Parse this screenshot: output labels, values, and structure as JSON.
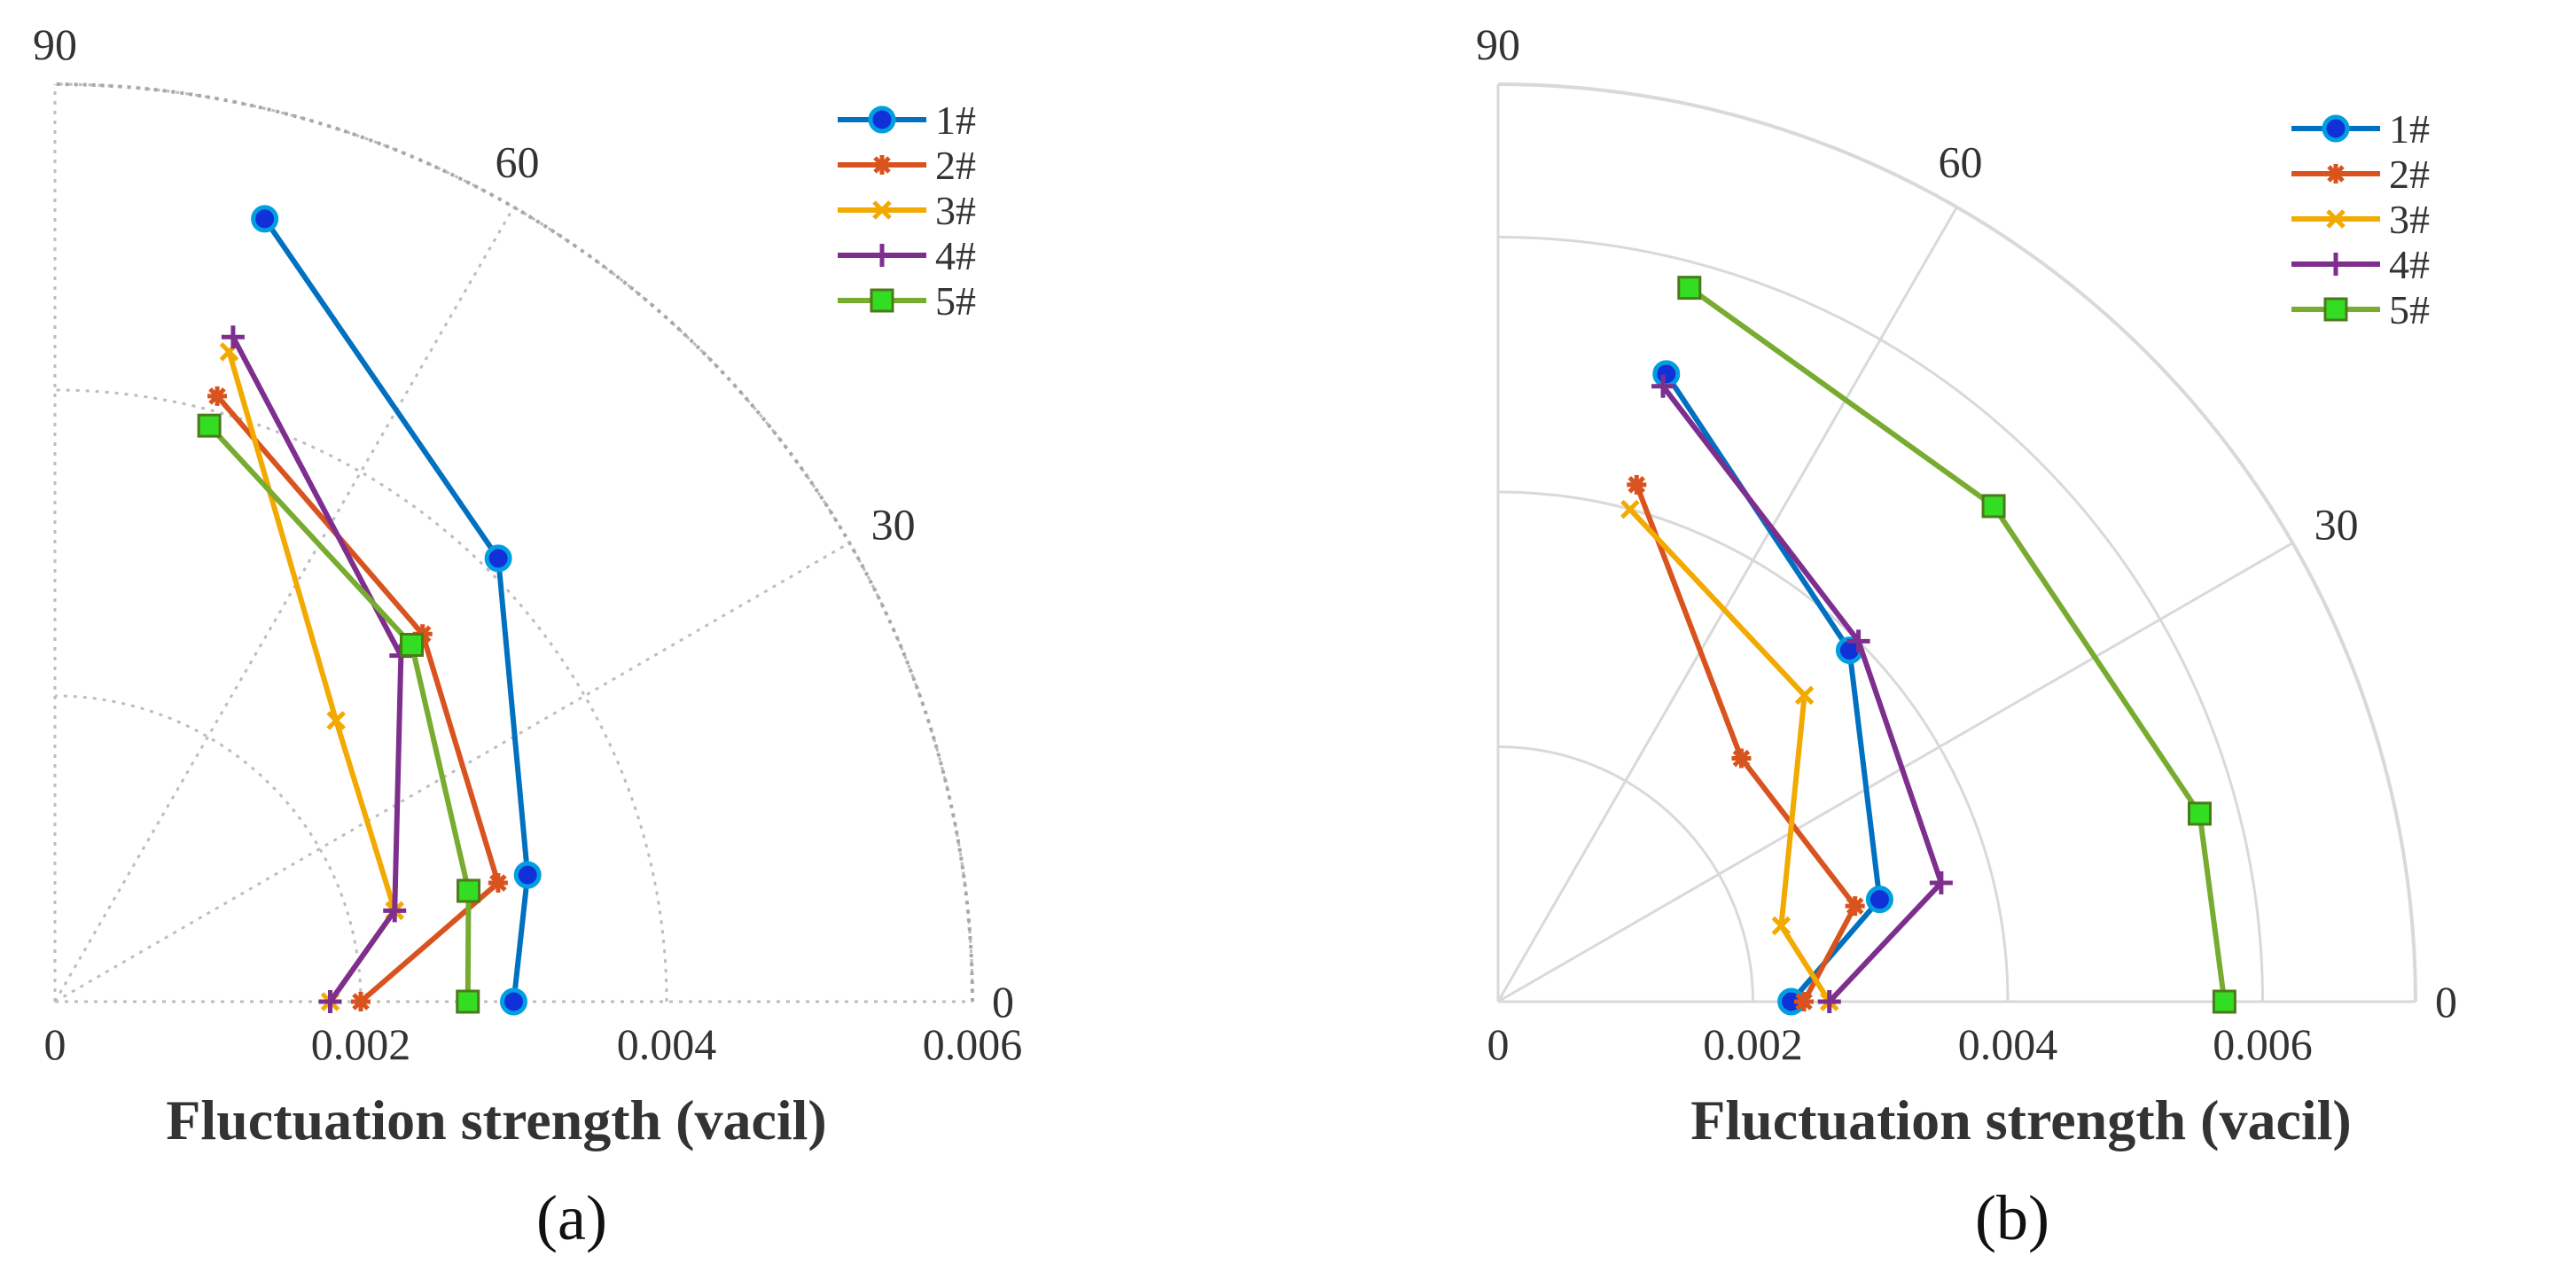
{
  "chart_data": [
    {
      "type": "polar-line",
      "panel_label": "(a)",
      "xlabel": "Fluctuation strength (vacil)",
      "radial_ticks": [
        "0",
        "0.002",
        "0.004",
        "0.006"
      ],
      "radial_tick_values": [
        0,
        0.002,
        0.004,
        0.006
      ],
      "rlim": [
        0,
        0.006
      ],
      "angle_ticks": [
        "0",
        "30",
        "60",
        "90"
      ],
      "angle_tick_values": [
        0,
        30,
        60,
        90
      ],
      "angle_range_deg": [
        0,
        90
      ],
      "grid": "dotted",
      "legend_position": "top-right",
      "series": [
        {
          "name": "1#",
          "color": "#0070C0",
          "marker": "circle",
          "angles": [
            0,
            15,
            45,
            75
          ],
          "values": [
            0.003,
            0.0032,
            0.0041,
            0.0053
          ]
        },
        {
          "name": "2#",
          "color": "#D9531E",
          "marker": "star",
          "angles": [
            0,
            15,
            45,
            75
          ],
          "values": [
            0.002,
            0.003,
            0.0034,
            0.0041
          ]
        },
        {
          "name": "3#",
          "color": "#F2A900",
          "marker": "x",
          "angles": [
            0,
            15,
            45,
            75
          ],
          "values": [
            0.0018,
            0.0023,
            0.0026,
            0.0044
          ]
        },
        {
          "name": "4#",
          "color": "#7E2F8E",
          "marker": "plus",
          "angles": [
            0,
            15,
            45,
            75
          ],
          "values": [
            0.0018,
            0.0023,
            0.0032,
            0.0045
          ]
        },
        {
          "name": "5#",
          "color": "#77AC30",
          "marker": "square",
          "angles": [
            0,
            15,
            45,
            75
          ],
          "values": [
            0.0027,
            0.0028,
            0.0033,
            0.0039
          ]
        }
      ]
    },
    {
      "type": "polar-line",
      "panel_label": "(b)",
      "xlabel": "Fluctuation strength (vacil)",
      "radial_ticks": [
        "0",
        "0.002",
        "0.004",
        "0.006"
      ],
      "radial_tick_values": [
        0,
        0.002,
        0.004,
        0.006
      ],
      "rlim": [
        0,
        0.0072
      ],
      "angle_ticks": [
        "0",
        "30",
        "60",
        "90"
      ],
      "angle_tick_values": [
        0,
        30,
        60,
        90
      ],
      "angle_range_deg": [
        0,
        90
      ],
      "grid": "solid",
      "legend_position": "top-right",
      "series": [
        {
          "name": "1#",
          "color": "#0070C0",
          "marker": "circle",
          "angles": [
            0,
            15,
            45,
            75
          ],
          "values": [
            0.0023,
            0.0031,
            0.0039,
            0.0051
          ]
        },
        {
          "name": "2#",
          "color": "#D9531E",
          "marker": "star",
          "angles": [
            0,
            15,
            45,
            75
          ],
          "values": [
            0.0024,
            0.0029,
            0.0027,
            0.0042
          ]
        },
        {
          "name": "3#",
          "color": "#F2A900",
          "marker": "x",
          "angles": [
            0,
            15,
            45,
            75
          ],
          "values": [
            0.0026,
            0.0023,
            0.0034,
            0.004
          ]
        },
        {
          "name": "4#",
          "color": "#7E2F8E",
          "marker": "plus",
          "angles": [
            0,
            15,
            45,
            75
          ],
          "values": [
            0.0026,
            0.0036,
            0.004,
            0.005
          ]
        },
        {
          "name": "5#",
          "color": "#77AC30",
          "marker": "square",
          "angles": [
            0,
            15,
            45,
            75
          ],
          "values": [
            0.0057,
            0.0057,
            0.0055,
            0.0058
          ]
        }
      ]
    }
  ]
}
